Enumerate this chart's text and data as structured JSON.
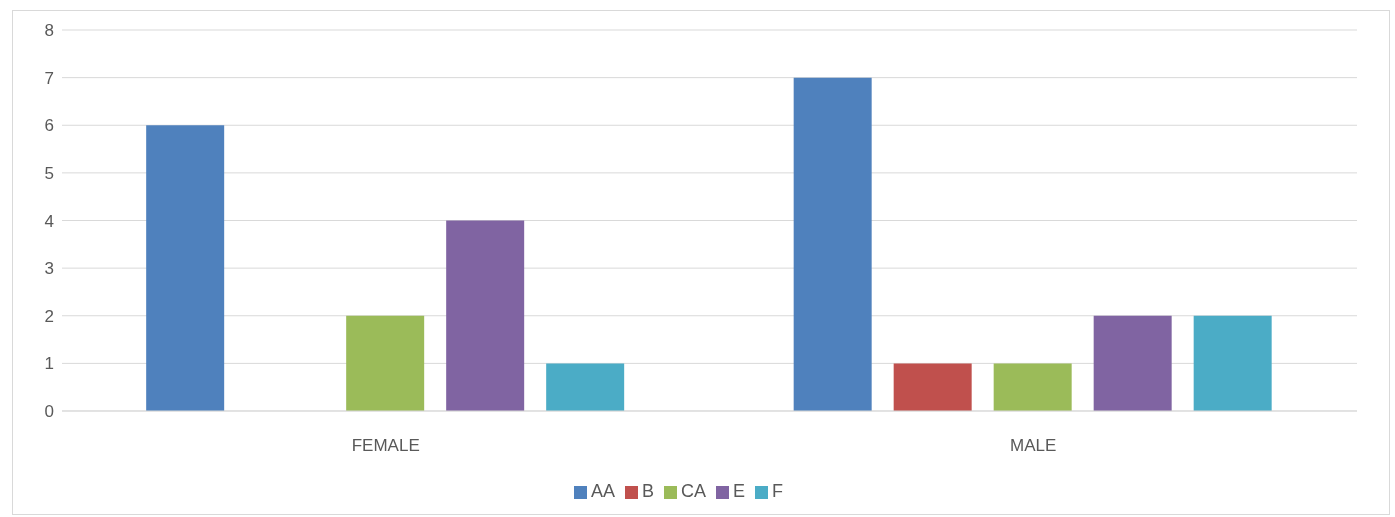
{
  "chart_data": {
    "type": "bar",
    "categories": [
      "FEMALE",
      "MALE"
    ],
    "series": [
      {
        "name": "AA",
        "color": "#4f81bd",
        "values": [
          6,
          7
        ]
      },
      {
        "name": "B",
        "color": "#c0504d",
        "values": [
          0,
          1
        ]
      },
      {
        "name": "CA",
        "color": "#9bbb59",
        "values": [
          2,
          1
        ]
      },
      {
        "name": "E",
        "color": "#8064a2",
        "values": [
          4,
          2
        ]
      },
      {
        "name": "F",
        "color": "#4bacc6",
        "values": [
          1,
          2
        ]
      }
    ],
    "ylim": [
      0,
      8
    ],
    "yticks": [
      0,
      1,
      2,
      3,
      4,
      5,
      6,
      7,
      8
    ],
    "grid": "y",
    "legend": "bottom"
  }
}
